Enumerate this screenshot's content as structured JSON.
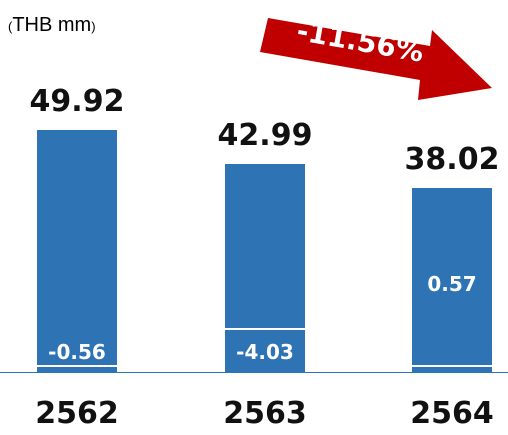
{
  "unit_label": {
    "open": "(",
    "text": "THB mm",
    "close": ")"
  },
  "change_label": "-11.56%",
  "colors": {
    "bar": "#2e74b5",
    "arrow": "#c00000",
    "axis": "#2e74b5"
  },
  "chart_data": {
    "type": "bar",
    "categories": [
      "2562",
      "2563",
      "2564"
    ],
    "values": [
      49.92,
      42.99,
      38.02
    ],
    "total_labels": [
      "49.92",
      "42.99",
      "38.02"
    ],
    "inner_values": [
      -0.56,
      -4.03,
      0.57
    ],
    "inner_labels": [
      "-0.56",
      "-4.03",
      "0.57"
    ],
    "ylim": [
      0,
      55
    ],
    "grid": false
  }
}
